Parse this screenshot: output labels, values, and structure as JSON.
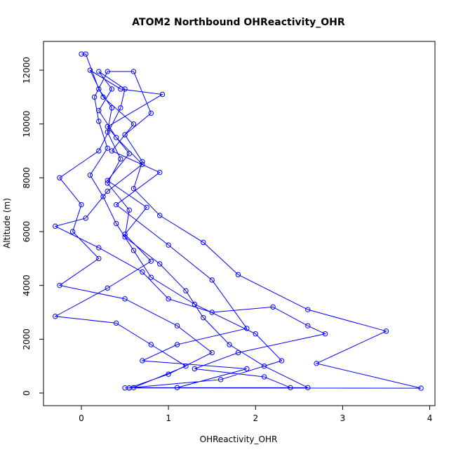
{
  "chart_data": {
    "type": "line",
    "title": "ATOM2 Northbound OHReactivity_OHR",
    "x_label": "OHReactivity_OHR",
    "y_label": "Altitude (m)",
    "color": "#0000ff",
    "x": [
      0.0,
      0.05,
      0.2,
      0.35,
      0.3,
      0.45,
      0.3,
      0.55,
      0.5,
      0.9,
      1.2,
      1.4,
      1.7,
      2.1,
      2.6,
      0.55,
      1.6,
      2.3,
      2.0,
      1.3,
      0.8,
      0.6,
      0.4,
      0.25,
      0.1,
      0.3,
      0.2,
      0.15,
      0.3,
      0.6,
      0.8,
      0.5,
      0.7,
      0.6,
      0.9,
      1.4,
      1.8,
      2.6,
      3.5,
      2.7,
      3.9,
      0.55,
      1.0,
      1.5,
      1.1,
      0.5,
      -0.25,
      0.2,
      -0.1,
      0.0,
      -0.25,
      0.2,
      0.45,
      0.5,
      0.2,
      0.35,
      0.2,
      0.4,
      0.7,
      0.3,
      0.05,
      -0.3,
      0.2,
      0.7,
      1.0,
      1.5,
      2.2,
      2.6,
      2.8,
      1.8,
      1.3,
      2.1,
      2.4,
      0.6,
      1.2,
      0.8,
      0.4,
      -0.3,
      0.3,
      0.8,
      0.5,
      0.75,
      0.3,
      0.55,
      0.3,
      0.93,
      0.45,
      0.1,
      0.25,
      0.6,
      0.35,
      0.9,
      0.4,
      1.0,
      1.5,
      1.9,
      1.1,
      0.7,
      1.9,
      1.1,
      0.5
    ],
    "values": [
      12600,
      12600,
      11300,
      10600,
      9700,
      8700,
      7800,
      6800,
      5800,
      4800,
      3800,
      2800,
      1800,
      1000,
      200,
      190,
      500,
      1200,
      2200,
      3300,
      4300,
      5300,
      6300,
      7300,
      8100,
      9100,
      10100,
      11000,
      11950,
      11950,
      10400,
      9600,
      8600,
      7600,
      6600,
      5600,
      4400,
      3100,
      2300,
      1100,
      180,
      190,
      700,
      1500,
      2500,
      3500,
      4000,
      5000,
      6000,
      7000,
      8000,
      9000,
      10600,
      11300,
      11950,
      11300,
      10500,
      9500,
      8500,
      7500,
      6500,
      6200,
      5400,
      4500,
      3500,
      3000,
      3200,
      2500,
      2200,
      1500,
      900,
      600,
      200,
      200,
      1000,
      1800,
      2600,
      2850,
      3900,
      4900,
      5900,
      6900,
      7900,
      8900,
      9900,
      11100,
      11300,
      12000,
      11000,
      10000,
      9000,
      8200,
      7000,
      5500,
      4200,
      2400,
      1800,
      1200,
      900,
      200,
      190
    ],
    "xlim": [
      -0.435,
      4.06
    ],
    "ylim": [
      -470,
      13070
    ],
    "xticks": [
      0,
      1,
      2,
      3,
      4
    ],
    "yticks": [
      0,
      2000,
      4000,
      6000,
      8000,
      10000,
      12000
    ]
  }
}
